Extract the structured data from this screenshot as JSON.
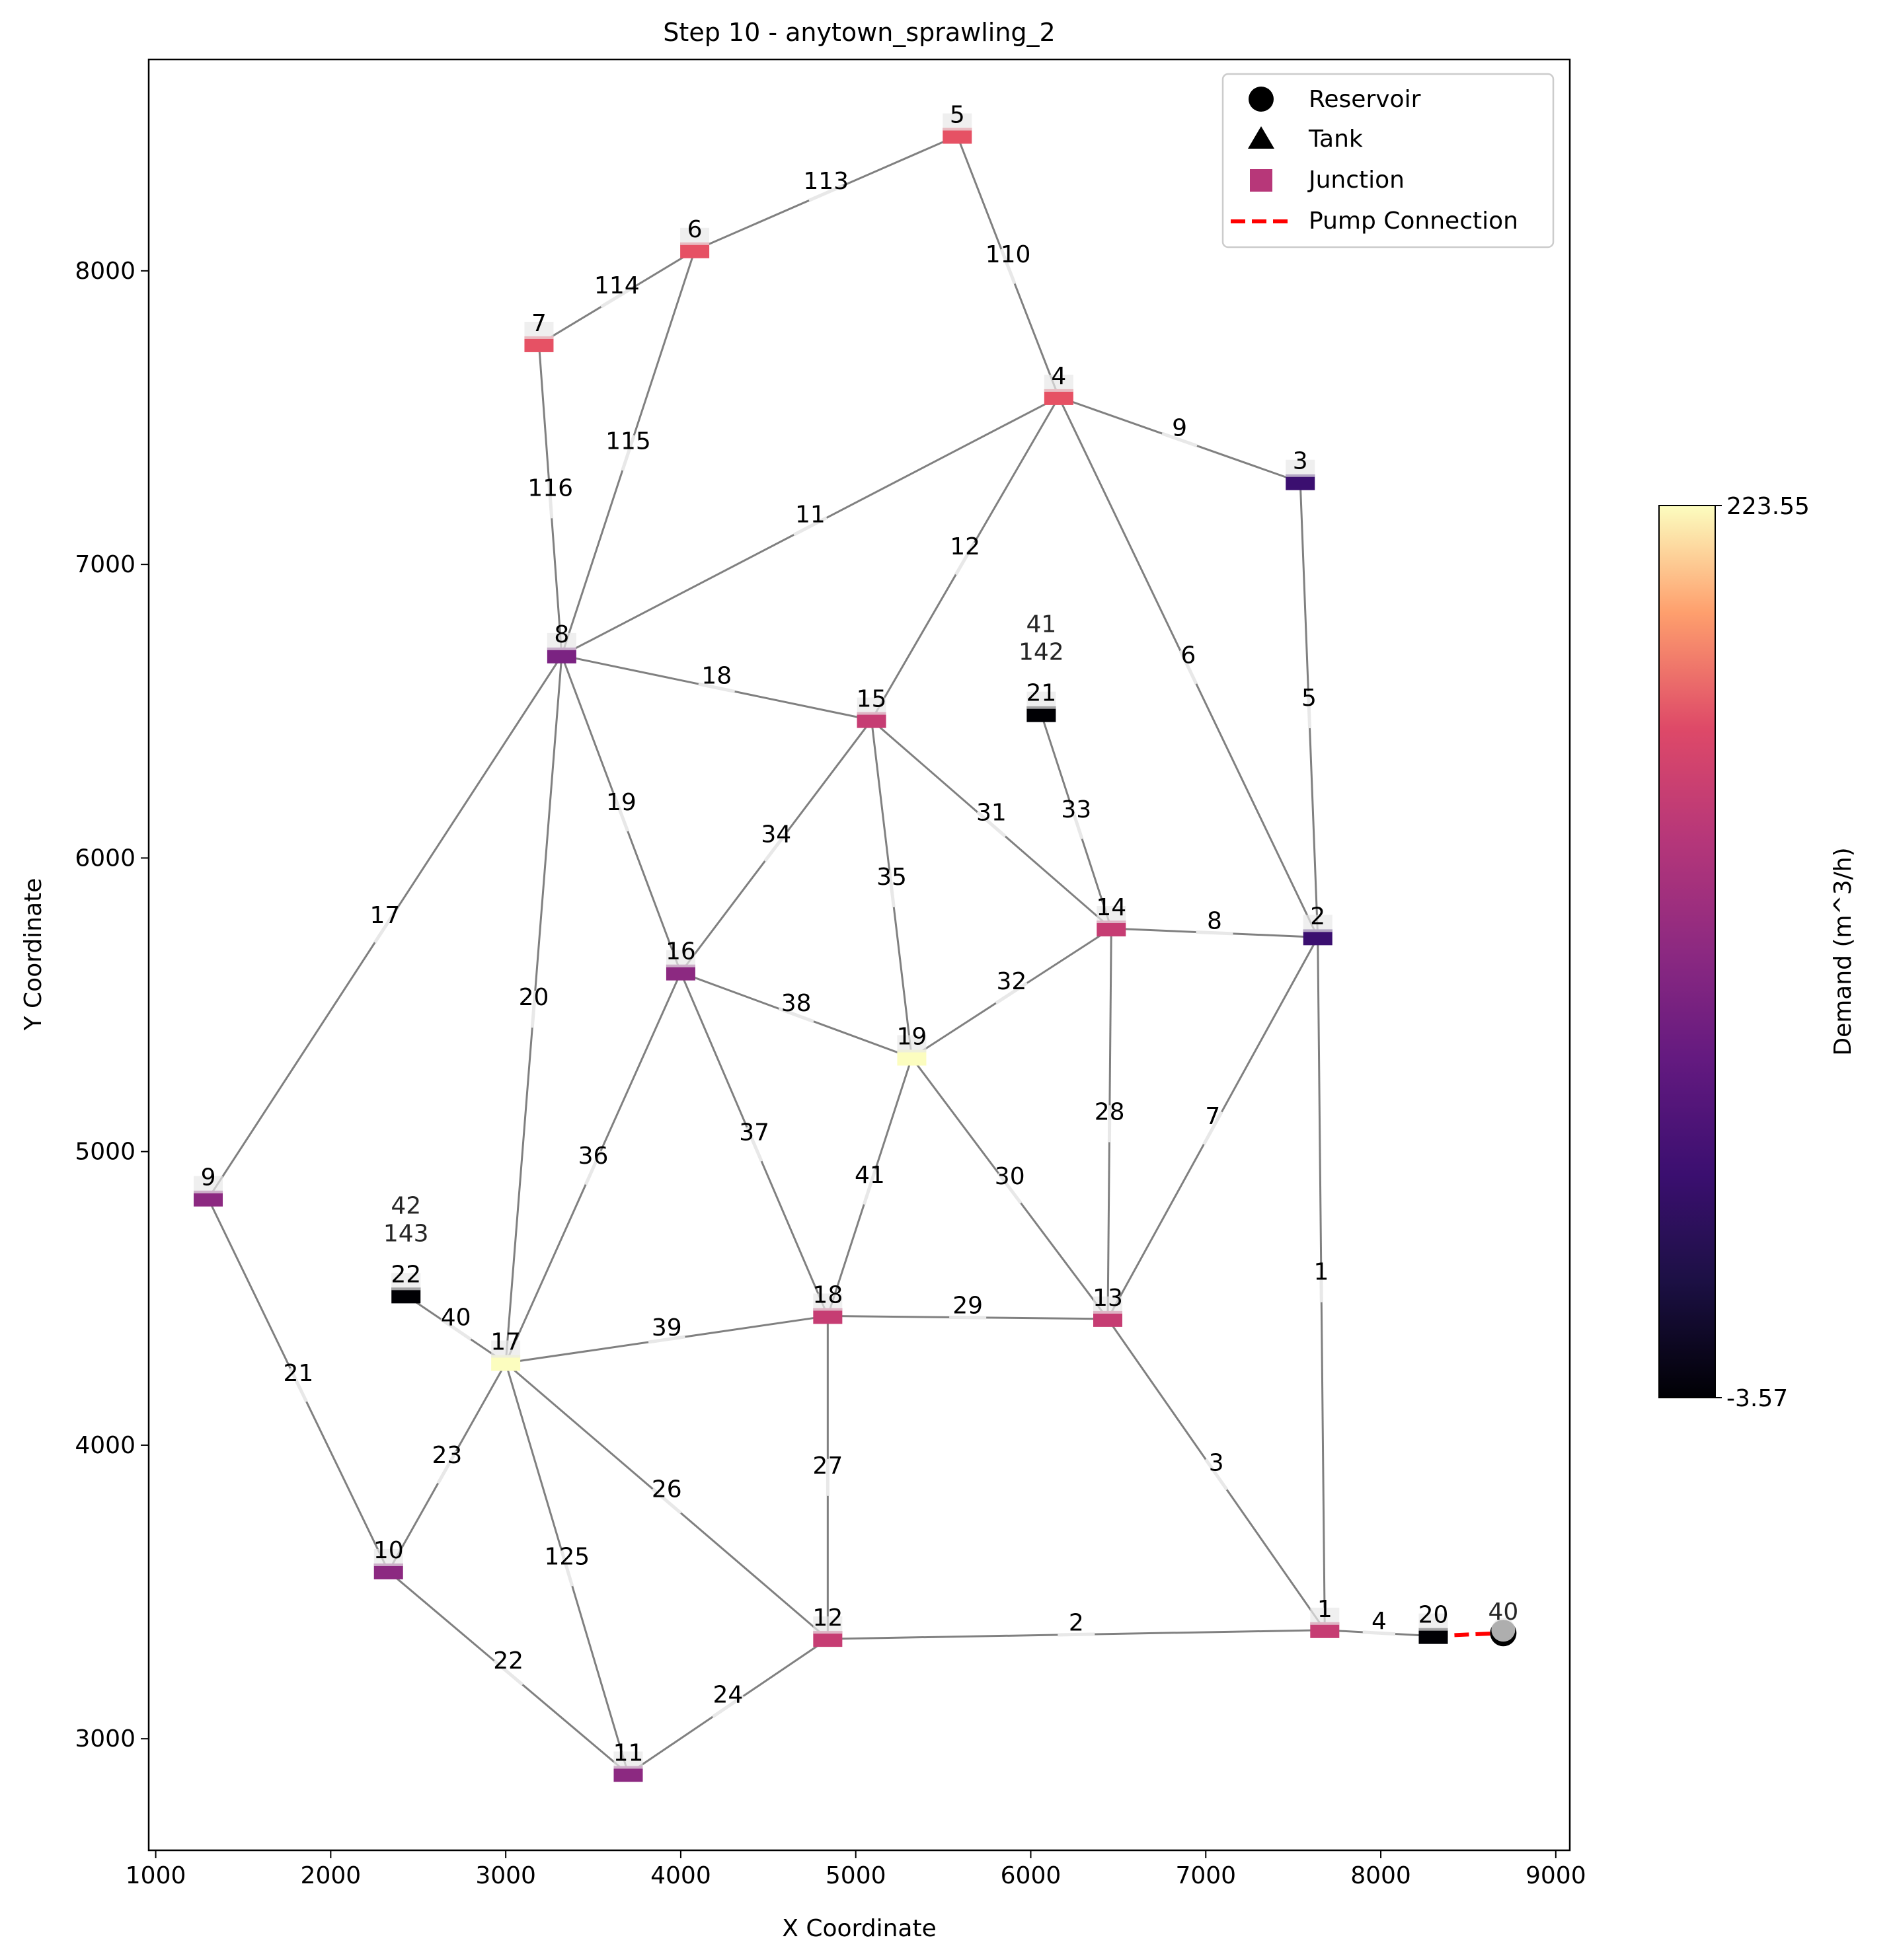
{
  "chart_data": {
    "type": "network",
    "title": "Step 10 - anytown_sprawling_2",
    "xlabel": "X Coordinate",
    "ylabel": "Y Coordinate",
    "xlim": [
      960,
      9080
    ],
    "ylim": [
      2620,
      8720
    ],
    "xticks": [
      1000,
      2000,
      3000,
      4000,
      5000,
      6000,
      7000,
      8000,
      9000
    ],
    "yticks": [
      3000,
      4000,
      5000,
      6000,
      7000,
      8000
    ],
    "grid": false,
    "legend_position": "top-right",
    "legend": [
      {
        "label": "Reservoir",
        "marker": "circle",
        "color": "#000000"
      },
      {
        "label": "Tank",
        "marker": "triangle",
        "color": "#000000"
      },
      {
        "label": "Junction",
        "marker": "square",
        "color": "#b73779"
      },
      {
        "label": "Pump Connection",
        "marker": "dashed-line",
        "color": "#ff0000"
      }
    ],
    "colorbar": {
      "label": "Demand (m^3/h)",
      "min": -3.57,
      "max": 223.55,
      "min_label": "-3.57",
      "max_label": "223.55",
      "colormap": "magma"
    },
    "nodes": [
      {
        "id": "1",
        "x": 7680,
        "y": 3370,
        "color": "#c63d73"
      },
      {
        "id": "2",
        "x": 7640,
        "y": 5730,
        "color": "#3b0f70"
      },
      {
        "id": "3",
        "x": 7540,
        "y": 7280,
        "color": "#3b0f70"
      },
      {
        "id": "4",
        "x": 6160,
        "y": 7570,
        "color": "#e65164"
      },
      {
        "id": "5",
        "x": 5580,
        "y": 8460,
        "color": "#e65164"
      },
      {
        "id": "6",
        "x": 4080,
        "y": 8070,
        "color": "#e65164"
      },
      {
        "id": "7",
        "x": 3190,
        "y": 7750,
        "color": "#e65164"
      },
      {
        "id": "8",
        "x": 3320,
        "y": 6690,
        "color": "#7b2382"
      },
      {
        "id": "9",
        "x": 1300,
        "y": 4840,
        "color": "#8c2981"
      },
      {
        "id": "10",
        "x": 2330,
        "y": 3570,
        "color": "#8c2981"
      },
      {
        "id": "11",
        "x": 3700,
        "y": 2880,
        "color": "#8c2981"
      },
      {
        "id": "12",
        "x": 4840,
        "y": 3340,
        "color": "#c63d73"
      },
      {
        "id": "13",
        "x": 6440,
        "y": 4430,
        "color": "#c63d73"
      },
      {
        "id": "14",
        "x": 6460,
        "y": 5760,
        "color": "#c63d73"
      },
      {
        "id": "15",
        "x": 5090,
        "y": 6470,
        "color": "#c63d73"
      },
      {
        "id": "16",
        "x": 4000,
        "y": 5610,
        "color": "#8c2981"
      },
      {
        "id": "17",
        "x": 3000,
        "y": 4280,
        "color": "#fcfdbf"
      },
      {
        "id": "18",
        "x": 4840,
        "y": 4440,
        "color": "#c63d73"
      },
      {
        "id": "19",
        "x": 5320,
        "y": 5320,
        "color": "#fcfdbf"
      },
      {
        "id": "20",
        "x": 8300,
        "y": 3350,
        "color": "#000004"
      },
      {
        "id": "21",
        "x": 6060,
        "y": 6490,
        "color": "#000004"
      },
      {
        "id": "22",
        "x": 2430,
        "y": 4510,
        "color": "#000004"
      }
    ],
    "node_id_labels": [
      {
        "text": "41",
        "node": "21"
      },
      {
        "text": "142",
        "node": "21"
      },
      {
        "text": "42",
        "node": "22"
      },
      {
        "text": "143",
        "node": "22"
      },
      {
        "text": "40",
        "node": "40"
      }
    ],
    "reservoirs": [
      {
        "id": "40",
        "x": 8700,
        "y": 3360
      }
    ],
    "pipes": [
      {
        "id": "1",
        "from": "1",
        "to": "2"
      },
      {
        "id": "2",
        "from": "12",
        "to": "1"
      },
      {
        "id": "3",
        "from": "13",
        "to": "1"
      },
      {
        "id": "4",
        "from": "1",
        "to": "20"
      },
      {
        "id": "5",
        "from": "3",
        "to": "2"
      },
      {
        "id": "6",
        "from": "4",
        "to": "2"
      },
      {
        "id": "7",
        "from": "13",
        "to": "2"
      },
      {
        "id": "8",
        "from": "14",
        "to": "2"
      },
      {
        "id": "9",
        "from": "4",
        "to": "3"
      },
      {
        "id": "11",
        "from": "8",
        "to": "4"
      },
      {
        "id": "12",
        "from": "15",
        "to": "4"
      },
      {
        "id": "17",
        "from": "9",
        "to": "8"
      },
      {
        "id": "18",
        "from": "8",
        "to": "15"
      },
      {
        "id": "19",
        "from": "8",
        "to": "16"
      },
      {
        "id": "20",
        "from": "17",
        "to": "8"
      },
      {
        "id": "21",
        "from": "9",
        "to": "10"
      },
      {
        "id": "22",
        "from": "10",
        "to": "11"
      },
      {
        "id": "23",
        "from": "10",
        "to": "17"
      },
      {
        "id": "24",
        "from": "11",
        "to": "12"
      },
      {
        "id": "26",
        "from": "17",
        "to": "12"
      },
      {
        "id": "27",
        "from": "18",
        "to": "12"
      },
      {
        "id": "28",
        "from": "14",
        "to": "13"
      },
      {
        "id": "29",
        "from": "18",
        "to": "13"
      },
      {
        "id": "30",
        "from": "19",
        "to": "13"
      },
      {
        "id": "31",
        "from": "15",
        "to": "14"
      },
      {
        "id": "32",
        "from": "19",
        "to": "14"
      },
      {
        "id": "33",
        "from": "21",
        "to": "14"
      },
      {
        "id": "34",
        "from": "16",
        "to": "15"
      },
      {
        "id": "35",
        "from": "15",
        "to": "19"
      },
      {
        "id": "36",
        "from": "17",
        "to": "16"
      },
      {
        "id": "37",
        "from": "16",
        "to": "18"
      },
      {
        "id": "38",
        "from": "16",
        "to": "19"
      },
      {
        "id": "39",
        "from": "17",
        "to": "18"
      },
      {
        "id": "40",
        "from": "22",
        "to": "17"
      },
      {
        "id": "41",
        "from": "18",
        "to": "19"
      },
      {
        "id": "110",
        "from": "5",
        "to": "4"
      },
      {
        "id": "113",
        "from": "6",
        "to": "5"
      },
      {
        "id": "114",
        "from": "7",
        "to": "6"
      },
      {
        "id": "115",
        "from": "8",
        "to": "6"
      },
      {
        "id": "116",
        "from": "8",
        "to": "7"
      },
      {
        "id": "125",
        "from": "17",
        "to": "11"
      }
    ],
    "pump_connections": [
      {
        "from": "20",
        "to": "40"
      }
    ]
  }
}
